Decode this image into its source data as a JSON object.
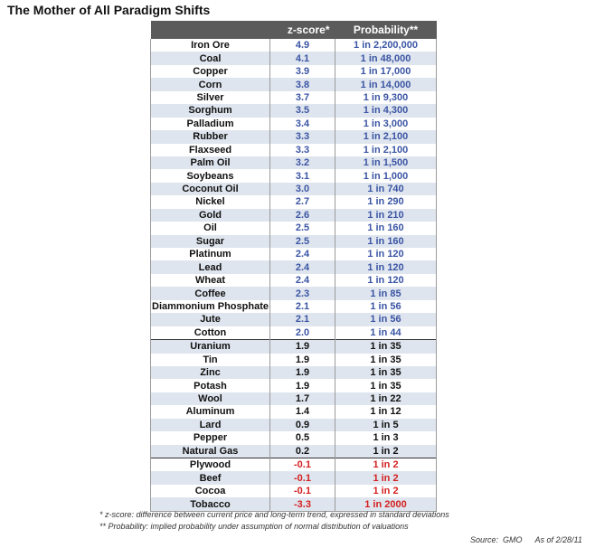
{
  "title": "The Mother of All Paradigm Shifts",
  "chart_data": {
    "type": "table",
    "columns": [
      "",
      "z-score*",
      "Probability**"
    ],
    "rows": [
      {
        "name": "Iron Ore",
        "z": "4.9",
        "p": "1 in 2,200,000",
        "group": "blue"
      },
      {
        "name": "Coal",
        "z": "4.1",
        "p": "1 in 48,000",
        "group": "blue"
      },
      {
        "name": "Copper",
        "z": "3.9",
        "p": "1 in 17,000",
        "group": "blue"
      },
      {
        "name": "Corn",
        "z": "3.8",
        "p": "1 in 14,000",
        "group": "blue"
      },
      {
        "name": "Silver",
        "z": "3.7",
        "p": "1 in 9,300",
        "group": "blue"
      },
      {
        "name": "Sorghum",
        "z": "3.5",
        "p": "1 in 4,300",
        "group": "blue"
      },
      {
        "name": "Palladium",
        "z": "3.4",
        "p": "1 in 3,000",
        "group": "blue"
      },
      {
        "name": "Rubber",
        "z": "3.3",
        "p": "1 in 2,100",
        "group": "blue"
      },
      {
        "name": "Flaxseed",
        "z": "3.3",
        "p": "1 in 2,100",
        "group": "blue"
      },
      {
        "name": "Palm Oil",
        "z": "3.2",
        "p": "1 in 1,500",
        "group": "blue"
      },
      {
        "name": "Soybeans",
        "z": "3.1",
        "p": "1 in 1,000",
        "group": "blue"
      },
      {
        "name": "Coconut Oil",
        "z": "3.0",
        "p": "1 in 740",
        "group": "blue"
      },
      {
        "name": "Nickel",
        "z": "2.7",
        "p": "1 in 290",
        "group": "blue"
      },
      {
        "name": "Gold",
        "z": "2.6",
        "p": "1 in 210",
        "group": "blue"
      },
      {
        "name": "Oil",
        "z": "2.5",
        "p": "1 in 160",
        "group": "blue"
      },
      {
        "name": "Sugar",
        "z": "2.5",
        "p": "1 in 160",
        "group": "blue"
      },
      {
        "name": "Platinum",
        "z": "2.4",
        "p": "1 in 120",
        "group": "blue"
      },
      {
        "name": "Lead",
        "z": "2.4",
        "p": "1 in 120",
        "group": "blue"
      },
      {
        "name": "Wheat",
        "z": "2.4",
        "p": "1 in 120",
        "group": "blue"
      },
      {
        "name": "Coffee",
        "z": "2.3",
        "p": "1 in 85",
        "group": "blue"
      },
      {
        "name": "Diammonium Phosphate",
        "z": "2.1",
        "p": "1 in 56",
        "group": "blue"
      },
      {
        "name": "Jute",
        "z": "2.1",
        "p": "1 in 56",
        "group": "blue"
      },
      {
        "name": "Cotton",
        "z": "2.0",
        "p": "1 in 44",
        "group": "blue"
      },
      {
        "name": "Uranium",
        "z": "1.9",
        "p": "1 in 35",
        "group": "black"
      },
      {
        "name": "Tin",
        "z": "1.9",
        "p": "1 in 35",
        "group": "black"
      },
      {
        "name": "Zinc",
        "z": "1.9",
        "p": "1 in 35",
        "group": "black"
      },
      {
        "name": "Potash",
        "z": "1.9",
        "p": "1 in 35",
        "group": "black"
      },
      {
        "name": "Wool",
        "z": "1.7",
        "p": "1 in 22",
        "group": "black"
      },
      {
        "name": "Aluminum",
        "z": "1.4",
        "p": "1 in 12",
        "group": "black"
      },
      {
        "name": "Lard",
        "z": "0.9",
        "p": "1 in 5",
        "group": "black"
      },
      {
        "name": "Pepper",
        "z": "0.5",
        "p": "1 in 3",
        "group": "black"
      },
      {
        "name": "Natural Gas",
        "z": "0.2",
        "p": "1 in 2",
        "group": "black"
      },
      {
        "name": "Plywood",
        "z": "-0.1",
        "p": "1 in 2",
        "group": "red"
      },
      {
        "name": "Beef",
        "z": "-0.1",
        "p": "1 in 2",
        "group": "red"
      },
      {
        "name": "Cocoa",
        "z": "-0.1",
        "p": "1 in 2",
        "group": "red"
      },
      {
        "name": "Tobacco",
        "z": "-3.3",
        "p": "1 in 2000",
        "group": "red"
      }
    ]
  },
  "colors": {
    "header_bg": "#5b5b5b",
    "stripe": "#dfe5ee",
    "blue": "#3a55a4",
    "black": "#111111",
    "red": "#d42020"
  },
  "footnotes": {
    "zscore": "*   z-score: difference between current price and long-term trend, expressed in standard deviations",
    "probability": "**  Probability:  implied probability under assumption of normal distribution of valuations"
  },
  "source": "Source:  GMO",
  "as_of": "As of 2/28/11"
}
